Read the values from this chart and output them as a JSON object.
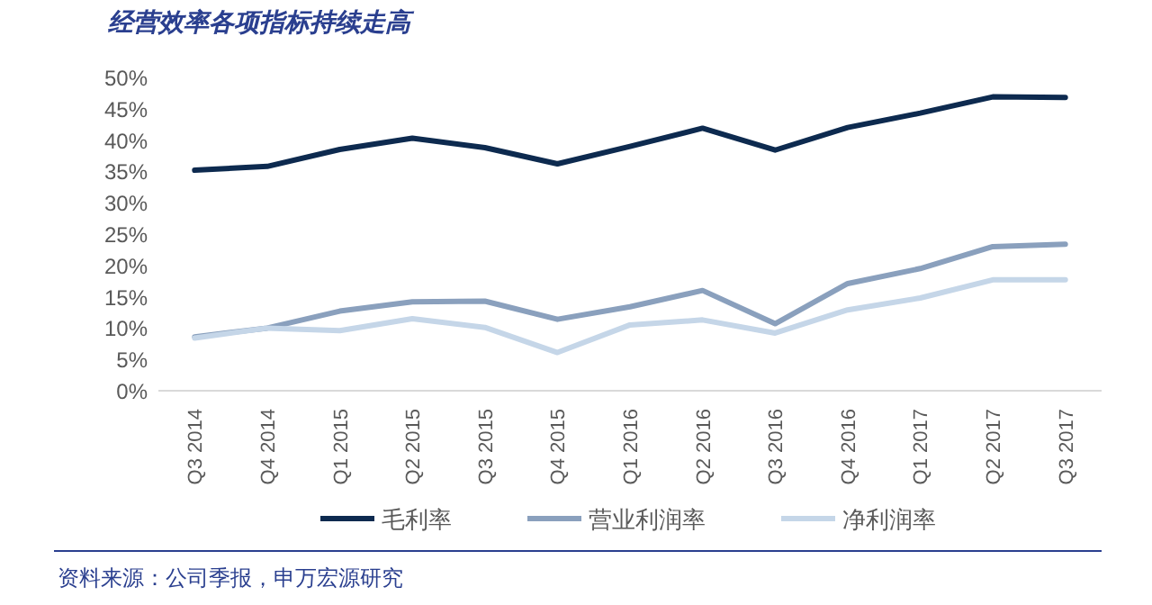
{
  "chart_data": {
    "type": "line",
    "title": "经营效率各项指标持续走高",
    "categories": [
      "Q3 2014",
      "Q4 2014",
      "Q1 2015",
      "Q2 2015",
      "Q3 2015",
      "Q4 2015",
      "Q1 2016",
      "Q2 2016",
      "Q3 2016",
      "Q4 2016",
      "Q1 2017",
      "Q2 2017",
      "Q3 2017"
    ],
    "series": [
      {
        "name": "毛利率",
        "color": "#0d2a4f",
        "values": [
          35.2,
          35.8,
          38.5,
          40.3,
          38.8,
          36.2,
          39.0,
          41.9,
          38.4,
          42.0,
          44.3,
          46.9,
          46.8
        ]
      },
      {
        "name": "营业利润率",
        "color": "#8aa0bd",
        "values": [
          8.6,
          10.0,
          12.7,
          14.2,
          14.3,
          11.4,
          13.4,
          16.0,
          10.7,
          17.1,
          19.5,
          23.0,
          23.4
        ]
      },
      {
        "name": "净利润率",
        "color": "#c5d6e8",
        "values": [
          8.4,
          10.0,
          9.6,
          11.5,
          10.1,
          6.1,
          10.5,
          11.3,
          9.2,
          12.9,
          14.8,
          17.7,
          17.7
        ]
      }
    ],
    "ylim": [
      0,
      50
    ],
    "yticks": [
      {
        "value": 0,
        "label": "0%"
      },
      {
        "value": 5,
        "label": "5%"
      },
      {
        "value": 10,
        "label": "10%"
      },
      {
        "value": 15,
        "label": "15%"
      },
      {
        "value": 20,
        "label": "20%"
      },
      {
        "value": 25,
        "label": "25%"
      },
      {
        "value": 30,
        "label": "30%"
      },
      {
        "value": 35,
        "label": "35%"
      },
      {
        "value": 40,
        "label": "40%"
      },
      {
        "value": 45,
        "label": "45%"
      },
      {
        "value": 50,
        "label": "50%"
      }
    ],
    "grid": false,
    "legend": "bottom",
    "marker": "none",
    "line_style": "solid",
    "annotations": [
      "资料来源：公司季报，申万宏源研究"
    ]
  }
}
